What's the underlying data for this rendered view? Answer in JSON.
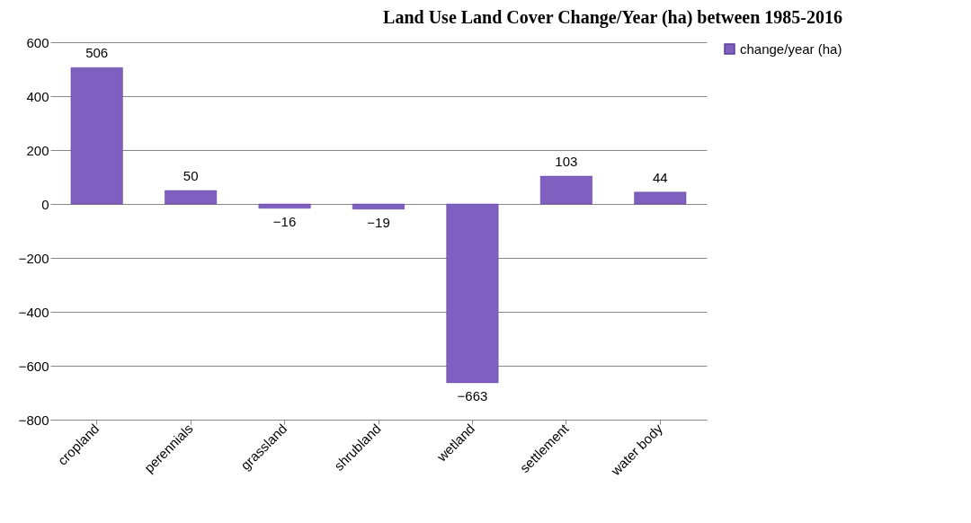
{
  "chart_data": {
    "type": "bar",
    "title": "Land Use Land Cover Change/Year (ha)  between 1985-2016",
    "categories": [
      "cropland",
      "perennials",
      "grassland",
      "shrubland",
      "wetland",
      "settlement",
      "water body"
    ],
    "series": [
      {
        "name": "change/year (ha)",
        "color": "#7f5fbf",
        "values": [
          506,
          50,
          -16,
          -19,
          -663,
          103,
          44
        ]
      }
    ],
    "ylim": [
      -800,
      600
    ],
    "yticks": [
      -800,
      -600,
      -400,
      -200,
      0,
      200,
      400,
      600
    ],
    "grid": "y",
    "legend": "right",
    "data_labels": true
  }
}
